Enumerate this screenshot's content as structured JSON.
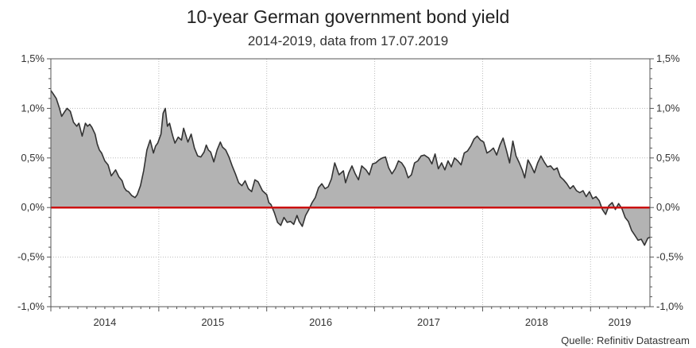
{
  "chart_data": {
    "type": "area",
    "title": "10-year German government bond yield",
    "subtitle": "2014-2019, data from 17.07.2019",
    "source": "Quelle: Refinitiv Datastream",
    "xlabel": "",
    "ylabel": "",
    "ylim": [
      -1.0,
      1.5
    ],
    "xlim": [
      2014.0,
      2019.55
    ],
    "y_ticks": [
      1.5,
      1.0,
      0.5,
      0.0,
      -0.5,
      -1.0
    ],
    "y_tick_labels": [
      "1,5%",
      "1,0%",
      "0,5%",
      "0,0%",
      "-0,5%",
      "-1,0%"
    ],
    "x_year_labels": [
      "2014",
      "2015",
      "2016",
      "2017",
      "2018",
      "2019"
    ],
    "x_year_label_positions": [
      2014.5,
      2015.5,
      2016.5,
      2017.5,
      2018.5,
      2019.27
    ],
    "x_year_boundaries": [
      2015,
      2016,
      2017,
      2018,
      2019
    ],
    "grid": true,
    "reference_line": {
      "y": 0.0,
      "color": "#cc1111"
    },
    "colors": {
      "fill": "#b3b3b3",
      "line": "#333333",
      "zero_line": "#cc1111",
      "grid": "#bbbbbb",
      "axis": "#555555"
    },
    "series": [
      {
        "name": "10-year German government bond yield",
        "x": [
          2014.0,
          2014.02,
          2014.05,
          2014.08,
          2014.1,
          2014.13,
          2014.15,
          2014.18,
          2014.21,
          2014.24,
          2014.26,
          2014.29,
          2014.32,
          2014.34,
          2014.36,
          2014.38,
          2014.41,
          2014.43,
          2014.45,
          2014.47,
          2014.5,
          2014.53,
          2014.56,
          2014.6,
          2014.63,
          2014.66,
          2014.68,
          2014.7,
          2014.72,
          2014.75,
          2014.78,
          2014.8,
          2014.83,
          2014.86,
          2014.89,
          2014.92,
          2014.95,
          2014.97,
          2014.99,
          2015.02,
          2015.04,
          2015.06,
          2015.08,
          2015.1,
          2015.12,
          2015.13,
          2015.15,
          2015.18,
          2015.21,
          2015.23,
          2015.27,
          2015.3,
          2015.33,
          2015.36,
          2015.39,
          2015.42,
          2015.44,
          2015.46,
          2015.48,
          2015.51,
          2015.54,
          2015.57,
          2015.59,
          2015.62,
          2015.65,
          2015.68,
          2015.71,
          2015.74,
          2015.77,
          2015.8,
          2015.83,
          2015.86,
          2015.89,
          2015.92,
          2015.96,
          2016.0,
          2016.02,
          2016.04,
          2016.07,
          2016.1,
          2016.13,
          2016.16,
          2016.19,
          2016.22,
          2016.25,
          2016.28,
          2016.3,
          2016.33,
          2016.36,
          2016.39,
          2016.42,
          2016.45,
          2016.48,
          2016.51,
          2016.54,
          2016.57,
          2016.6,
          2016.63,
          2016.67,
          2016.71,
          2016.73,
          2016.76,
          2016.79,
          2016.82,
          2016.85,
          2016.88,
          2016.92,
          2016.95,
          2016.98,
          2017.01,
          2017.04,
          2017.07,
          2017.1,
          2017.13,
          2017.16,
          2017.19,
          2017.22,
          2017.25,
          2017.28,
          2017.31,
          2017.34,
          2017.37,
          2017.4,
          2017.43,
          2017.46,
          2017.5,
          2017.53,
          2017.56,
          2017.59,
          2017.62,
          2017.65,
          2017.68,
          2017.71,
          2017.74,
          2017.77,
          2017.8,
          2017.83,
          2017.86,
          2017.89,
          2017.92,
          2017.95,
          2017.98,
          2018.01,
          2018.04,
          2018.07,
          2018.1,
          2018.13,
          2018.16,
          2018.19,
          2018.22,
          2018.25,
          2018.28,
          2018.31,
          2018.34,
          2018.37,
          2018.39,
          2018.42,
          2018.45,
          2018.48,
          2018.51,
          2018.54,
          2018.57,
          2018.6,
          2018.63,
          2018.66,
          2018.69,
          2018.72,
          2018.75,
          2018.78,
          2018.81,
          2018.84,
          2018.87,
          2018.9,
          2018.93,
          2018.96,
          2018.99,
          2019.02,
          2019.05,
          2019.08,
          2019.11,
          2019.14,
          2019.17,
          2019.2,
          2019.23,
          2019.26,
          2019.29,
          2019.32,
          2019.35,
          2019.38,
          2019.41,
          2019.44,
          2019.47,
          2019.5,
          2019.53,
          2019.55
        ],
        "values": [
          1.18,
          1.15,
          1.1,
          1.0,
          0.92,
          0.97,
          1.0,
          0.97,
          0.86,
          0.82,
          0.85,
          0.72,
          0.85,
          0.82,
          0.84,
          0.81,
          0.74,
          0.64,
          0.58,
          0.55,
          0.47,
          0.43,
          0.32,
          0.38,
          0.31,
          0.27,
          0.2,
          0.17,
          0.16,
          0.12,
          0.1,
          0.13,
          0.22,
          0.37,
          0.58,
          0.68,
          0.55,
          0.62,
          0.65,
          0.74,
          0.95,
          1.0,
          0.82,
          0.85,
          0.76,
          0.72,
          0.65,
          0.71,
          0.68,
          0.8,
          0.66,
          0.74,
          0.6,
          0.52,
          0.51,
          0.56,
          0.63,
          0.58,
          0.56,
          0.46,
          0.58,
          0.66,
          0.61,
          0.58,
          0.51,
          0.42,
          0.34,
          0.25,
          0.22,
          0.27,
          0.19,
          0.16,
          0.28,
          0.26,
          0.17,
          0.13,
          0.05,
          0.03,
          -0.05,
          -0.15,
          -0.18,
          -0.1,
          -0.15,
          -0.14,
          -0.17,
          -0.08,
          -0.14,
          -0.19,
          -0.08,
          -0.02,
          0.05,
          0.1,
          0.2,
          0.24,
          0.19,
          0.21,
          0.29,
          0.45,
          0.33,
          0.37,
          0.25,
          0.35,
          0.42,
          0.34,
          0.28,
          0.42,
          0.38,
          0.33,
          0.44,
          0.45,
          0.48,
          0.5,
          0.51,
          0.4,
          0.34,
          0.39,
          0.47,
          0.45,
          0.4,
          0.3,
          0.33,
          0.45,
          0.47,
          0.52,
          0.53,
          0.5,
          0.44,
          0.54,
          0.39,
          0.45,
          0.38,
          0.47,
          0.41,
          0.5,
          0.47,
          0.43,
          0.55,
          0.57,
          0.62,
          0.69,
          0.72,
          0.68,
          0.66,
          0.55,
          0.57,
          0.6,
          0.53,
          0.63,
          0.7,
          0.58,
          0.45,
          0.67,
          0.52,
          0.45,
          0.37,
          0.3,
          0.48,
          0.42,
          0.35,
          0.45,
          0.52,
          0.46,
          0.41,
          0.42,
          0.38,
          0.4,
          0.31,
          0.28,
          0.24,
          0.19,
          0.22,
          0.17,
          0.15,
          0.17,
          0.11,
          0.16,
          0.09,
          0.11,
          0.07,
          -0.02,
          -0.07,
          0.02,
          0.05,
          -0.02,
          0.04,
          -0.01,
          -0.1,
          -0.14,
          -0.23,
          -0.28,
          -0.33,
          -0.32,
          -0.38,
          -0.31,
          -0.3
        ]
      }
    ]
  }
}
